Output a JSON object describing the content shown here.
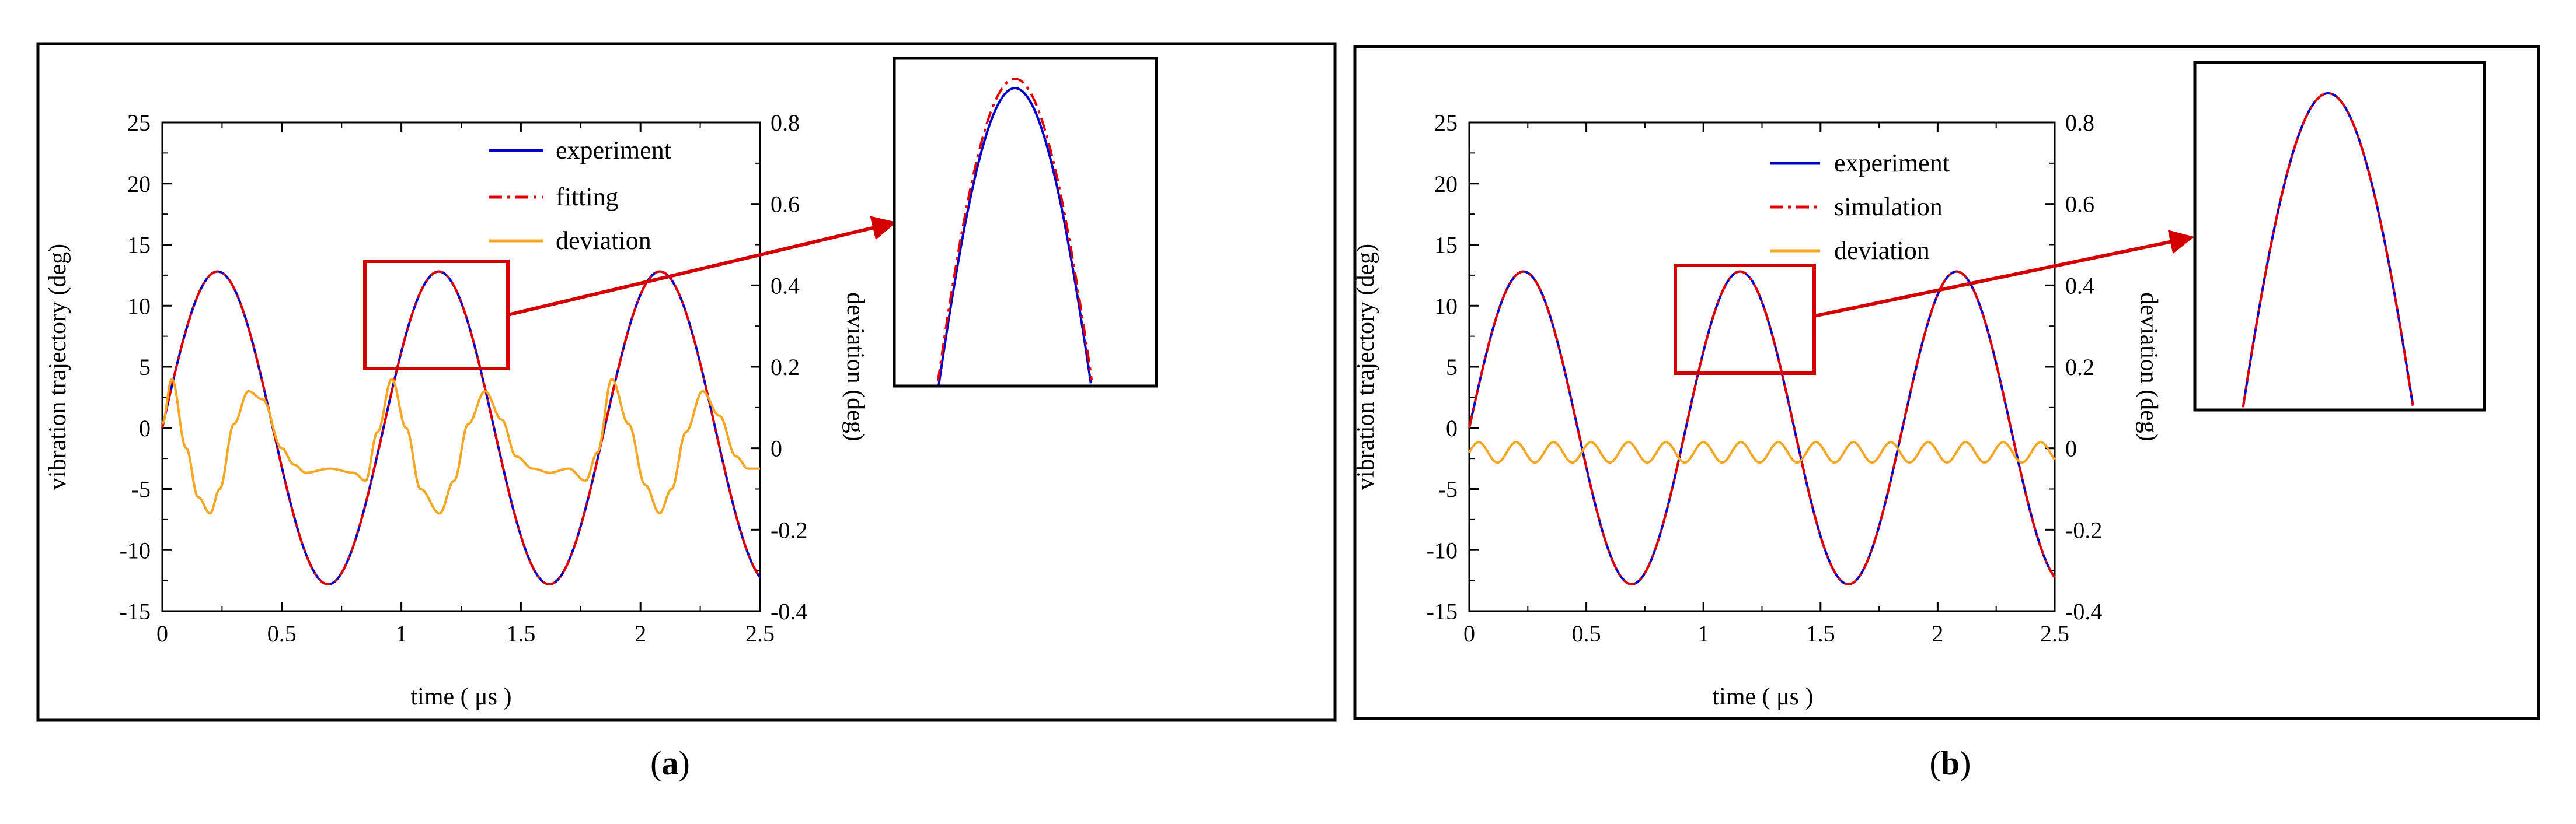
{
  "panels": [
    {
      "label_prefix": "(",
      "label_letter": "a",
      "label_suffix": ")"
    },
    {
      "label_prefix": "(",
      "label_letter": "b",
      "label_suffix": ")"
    }
  ],
  "colors": {
    "experiment": "#0000cc",
    "fitting": "#e00000",
    "deviation": "#f5a623",
    "annotation": "#d40000",
    "frame": "#000000"
  },
  "chart_data": [
    {
      "type": "line",
      "xlabel": "time ( μs )",
      "ylabel": "vibration trajectory (deg)",
      "y2label": "deviation (deg)",
      "xlim": [
        0,
        2.5
      ],
      "ylim": [
        -15,
        25
      ],
      "y2lim": [
        -0.4,
        0.8
      ],
      "x_ticks": [
        "0",
        "0.5",
        "1",
        "1.5",
        "2",
        "2.5"
      ],
      "y_ticks": [
        "-15",
        "-10",
        "-5",
        "0",
        "5",
        "10",
        "15",
        "20",
        "25"
      ],
      "y2_ticks": [
        "-0.4",
        "-0.2",
        "0",
        "0.2",
        "0.4",
        "0.6",
        "0.8"
      ],
      "legend_position": "top-right",
      "series": [
        {
          "name": "experiment",
          "style": "solid",
          "color": "#0000cc",
          "axis": "left",
          "amplitude": 12.8,
          "period": 0.925,
          "x_start": 0,
          "x_end": 2.5
        },
        {
          "name": "fitting",
          "style": "dash-dot",
          "color": "#e00000",
          "axis": "left",
          "amplitude": 12.8,
          "period": 0.925,
          "x_start": 0,
          "x_end": 2.5
        },
        {
          "name": "deviation",
          "style": "solid",
          "color": "#f5a623",
          "axis": "right",
          "x": [
            0,
            0.04,
            0.1,
            0.15,
            0.2,
            0.24,
            0.3,
            0.36,
            0.42,
            0.5,
            0.55,
            0.6,
            0.7,
            0.8,
            0.85,
            0.9,
            0.96,
            1.02,
            1.08,
            1.16,
            1.22,
            1.28,
            1.35,
            1.42,
            1.48,
            1.55,
            1.62,
            1.7,
            1.77,
            1.82,
            1.88,
            1.95,
            2.02,
            2.08,
            2.13,
            2.19,
            2.26,
            2.33,
            2.4,
            2.45,
            2.5
          ],
          "y": [
            0.06,
            0.17,
            0.0,
            -0.12,
            -0.16,
            -0.1,
            0.06,
            0.14,
            0.12,
            0.0,
            -0.04,
            -0.06,
            -0.05,
            -0.06,
            -0.08,
            0.04,
            0.17,
            0.05,
            -0.1,
            -0.16,
            -0.08,
            0.06,
            0.14,
            0.07,
            -0.02,
            -0.05,
            -0.06,
            -0.05,
            -0.08,
            -0.01,
            0.17,
            0.06,
            -0.09,
            -0.16,
            -0.1,
            0.04,
            0.14,
            0.08,
            -0.02,
            -0.05,
            -0.05
          ]
        }
      ],
      "zoom_box": {
        "x0": 0.88,
        "x1": 1.48,
        "y0": 4.8,
        "y1": 13.6
      }
    },
    {
      "type": "line",
      "xlabel": "time ( μs )",
      "ylabel": "vibration trajectory (deg)",
      "y2label": "deviation (deg)",
      "xlim": [
        0,
        2.5
      ],
      "ylim": [
        -15,
        25
      ],
      "y2lim": [
        -0.4,
        0.8
      ],
      "x_ticks": [
        "0",
        "0.5",
        "1",
        "1.5",
        "2",
        "2.5"
      ],
      "y_ticks": [
        "-15",
        "-10",
        "-5",
        "0",
        "5",
        "10",
        "15",
        "20",
        "25"
      ],
      "y2_ticks": [
        "-0.4",
        "-0.2",
        "0",
        "0.2",
        "0.4",
        "0.6",
        "0.8"
      ],
      "legend_position": "top-right",
      "series": [
        {
          "name": "experiment",
          "style": "solid",
          "color": "#0000cc",
          "axis": "left",
          "amplitude": 12.8,
          "period": 0.925,
          "x_start": 0,
          "x_end": 2.5
        },
        {
          "name": "simulation",
          "style": "dash-dot",
          "color": "#e00000",
          "axis": "left",
          "amplitude": 12.8,
          "period": 0.925,
          "x_start": 0,
          "x_end": 2.5
        },
        {
          "name": "deviation",
          "style": "solid",
          "color": "#f5a623",
          "axis": "right",
          "mean": -0.01,
          "amplitude": 0.025,
          "period": 0.16,
          "x_start": 0,
          "x_end": 2.5
        }
      ],
      "zoom_box": {
        "x0": 0.88,
        "x1": 1.48,
        "y0": 4.6,
        "y1": 13.6
      }
    }
  ]
}
